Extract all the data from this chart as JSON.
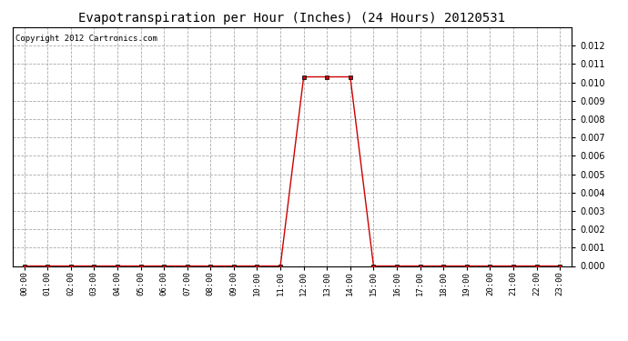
{
  "title": "Evapotranspiration per Hour (Inches) (24 Hours) 20120531",
  "copyright": "Copyright 2012 Cartronics.com",
  "hours": [
    0,
    1,
    2,
    3,
    4,
    5,
    6,
    7,
    8,
    9,
    10,
    11,
    12,
    13,
    14,
    15,
    16,
    17,
    18,
    19,
    20,
    21,
    22,
    23
  ],
  "values": [
    0.0,
    0.0,
    0.0,
    0.0,
    0.0,
    0.0,
    0.0,
    0.0,
    0.0,
    0.0,
    0.0,
    0.0,
    0.0103,
    0.0103,
    0.0103,
    0.0,
    0.0,
    0.0,
    0.0,
    0.0,
    0.0,
    0.0,
    0.0,
    0.0
  ],
  "line_color": "#cc0000",
  "marker": "s",
  "marker_size": 2.5,
  "ylim": [
    0,
    0.013
  ],
  "yticks": [
    0.0,
    0.001,
    0.002,
    0.003,
    0.004,
    0.005,
    0.006,
    0.007,
    0.008,
    0.009,
    0.01,
    0.011,
    0.012
  ],
  "bg_color": "#ffffff",
  "grid_color": "#aaaaaa",
  "title_fontsize": 10,
  "tick_fontsize": 6.5,
  "copyright_fontsize": 6.5,
  "ytick_fontsize": 7
}
